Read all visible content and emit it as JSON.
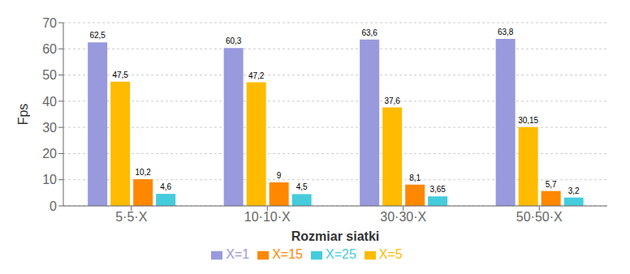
{
  "chart_data": {
    "type": "bar",
    "xlabel": "Rozmiar siatki",
    "ylabel": "Fps",
    "categories": [
      "5·5·X",
      "10·10·X",
      "30·30·X",
      "50·50·X"
    ],
    "series": [
      {
        "name": "X=1",
        "color": "#9999DD",
        "values": [
          62.5,
          60.3,
          63.6,
          63.8
        ],
        "value_labels": [
          "62,5",
          "60,3",
          "63,6",
          "63,8"
        ]
      },
      {
        "name": "X=5",
        "color": "#FFBB00",
        "values": [
          47.5,
          47.2,
          37.6,
          30.15
        ],
        "value_labels": [
          "47,5",
          "47,2",
          "37,6",
          "30,15"
        ]
      },
      {
        "name": "X=15",
        "color": "#FF8800",
        "values": [
          10.2,
          9.0,
          8.1,
          5.7
        ],
        "value_labels": [
          "10,2",
          "9",
          "8,1",
          "5,7"
        ]
      },
      {
        "name": "X=25",
        "color": "#44CCDD",
        "values": [
          4.6,
          4.5,
          3.65,
          3.2
        ],
        "value_labels": [
          "4,6",
          "4,5",
          "3,65",
          "3,2"
        ]
      }
    ],
    "ylim": [
      0,
      70
    ],
    "yticks": [
      0,
      10,
      20,
      30,
      40,
      50,
      60,
      70
    ],
    "grid": true,
    "legend": "bottom",
    "data_labels": true
  }
}
